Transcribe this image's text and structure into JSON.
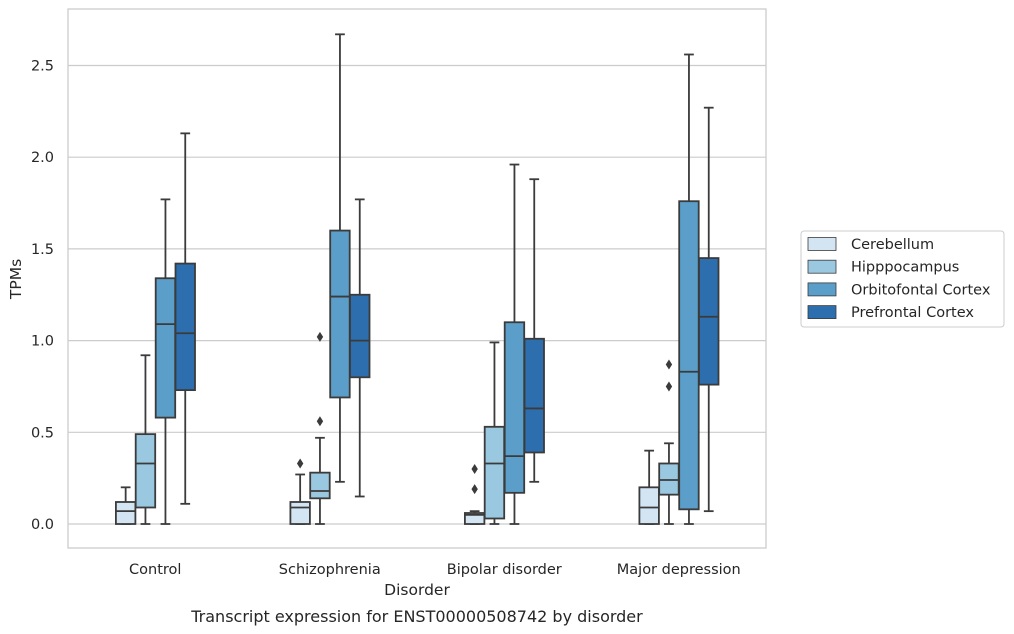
{
  "chart_data": {
    "type": "boxplot",
    "title": "",
    "caption": "Transcript expression for ENST00000508742 by disorder",
    "xlabel": "Disorder",
    "ylabel": "TPMs",
    "ylim": [
      -0.13,
      2.8
    ],
    "yticks": [
      0.0,
      0.5,
      1.0,
      1.5,
      2.0,
      2.5
    ],
    "ytick_labels": [
      "0.0",
      "0.5",
      "1.0",
      "1.5",
      "2.0",
      "2.5"
    ],
    "grid": "horizontal",
    "legend_position": "right",
    "categories": [
      "Control",
      "Schizophrenia",
      "Bipolar disorder",
      "Major depression"
    ],
    "series": [
      {
        "name": "Cerebellum",
        "color": "#d3e4f3",
        "boxes": [
          {
            "whislo": 0.0,
            "q1": 0.0,
            "med": 0.07,
            "q3": 0.12,
            "whishi": 0.2,
            "fliers": []
          },
          {
            "whislo": 0.0,
            "q1": 0.0,
            "med": 0.09,
            "q3": 0.12,
            "whishi": 0.27,
            "fliers": [
              0.33
            ]
          },
          {
            "whislo": 0.0,
            "q1": 0.0,
            "med": 0.05,
            "q3": 0.06,
            "whishi": 0.07,
            "fliers": [
              0.19,
              0.3
            ]
          },
          {
            "whislo": 0.0,
            "q1": 0.0,
            "med": 0.09,
            "q3": 0.2,
            "whishi": 0.4,
            "fliers": []
          }
        ]
      },
      {
        "name": "Hipppocampus",
        "color": "#9ac8e0",
        "boxes": [
          {
            "whislo": 0.0,
            "q1": 0.09,
            "med": 0.33,
            "q3": 0.49,
            "whishi": 0.92,
            "fliers": []
          },
          {
            "whislo": 0.0,
            "q1": 0.14,
            "med": 0.18,
            "q3": 0.28,
            "whishi": 0.47,
            "fliers": [
              0.56,
              1.02
            ]
          },
          {
            "whislo": 0.0,
            "q1": 0.03,
            "med": 0.33,
            "q3": 0.53,
            "whishi": 0.99,
            "fliers": []
          },
          {
            "whislo": 0.0,
            "q1": 0.16,
            "med": 0.24,
            "q3": 0.33,
            "whishi": 0.44,
            "fliers": [
              0.75,
              0.87
            ]
          }
        ]
      },
      {
        "name": "Orbitofontal Cortex",
        "color": "#5a9ec9",
        "boxes": [
          {
            "whislo": 0.0,
            "q1": 0.58,
            "med": 1.09,
            "q3": 1.34,
            "whishi": 1.77,
            "fliers": []
          },
          {
            "whislo": 0.23,
            "q1": 0.69,
            "med": 1.24,
            "q3": 1.6,
            "whishi": 2.67,
            "fliers": []
          },
          {
            "whislo": 0.0,
            "q1": 0.17,
            "med": 0.37,
            "q3": 1.1,
            "whishi": 1.96,
            "fliers": []
          },
          {
            "whislo": 0.0,
            "q1": 0.08,
            "med": 0.83,
            "q3": 1.76,
            "whishi": 2.56,
            "fliers": []
          }
        ]
      },
      {
        "name": "Prefrontal Cortex",
        "color": "#2d6fae",
        "boxes": [
          {
            "whislo": 0.11,
            "q1": 0.73,
            "med": 1.04,
            "q3": 1.42,
            "whishi": 2.13,
            "fliers": []
          },
          {
            "whislo": 0.15,
            "q1": 0.8,
            "med": 1.0,
            "q3": 1.25,
            "whishi": 1.77,
            "fliers": []
          },
          {
            "whislo": 0.23,
            "q1": 0.39,
            "med": 0.63,
            "q3": 1.01,
            "whishi": 1.88,
            "fliers": []
          },
          {
            "whislo": 0.07,
            "q1": 0.76,
            "med": 1.13,
            "q3": 1.45,
            "whishi": 2.27,
            "fliers": []
          }
        ]
      }
    ]
  }
}
